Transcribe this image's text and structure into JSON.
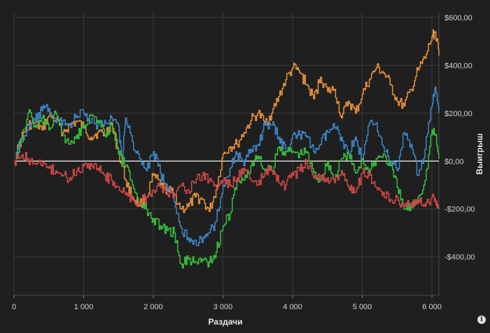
{
  "chart_data": {
    "type": "line",
    "xlabel": "Раздачи",
    "ylabel": "Выигрыш",
    "xlim": [
      0,
      6100
    ],
    "ylim": [
      -560,
      620
    ],
    "x_ticks": [
      {
        "value": 0,
        "label": "0"
      },
      {
        "value": 1000,
        "label": "1 000"
      },
      {
        "value": 2000,
        "label": "2 000"
      },
      {
        "value": 3000,
        "label": "3 000"
      },
      {
        "value": 4000,
        "label": "4 000"
      },
      {
        "value": 5000,
        "label": "5 000"
      },
      {
        "value": 6000,
        "label": "6 000"
      }
    ],
    "y_ticks": [
      {
        "value": 600,
        "label": "$600,00"
      },
      {
        "value": 400,
        "label": "$400,00"
      },
      {
        "value": 200,
        "label": "$200,00"
      },
      {
        "value": 0,
        "label": "$0,00"
      },
      {
        "value": -200,
        "label": "-$200,00"
      },
      {
        "value": -400,
        "label": "-$400,00"
      }
    ],
    "grid": true,
    "series": [
      {
        "color": "#e8913a",
        "x": [
          0,
          100,
          200,
          300,
          400,
          500,
          600,
          700,
          800,
          900,
          1000,
          1100,
          1200,
          1300,
          1400,
          1500,
          1600,
          1700,
          1800,
          1900,
          2000,
          2100,
          2200,
          2300,
          2400,
          2500,
          2600,
          2700,
          2800,
          2900,
          3000,
          3100,
          3200,
          3300,
          3400,
          3500,
          3600,
          3700,
          3800,
          3900,
          4000,
          4100,
          4200,
          4300,
          4400,
          4500,
          4600,
          4700,
          4800,
          4900,
          5000,
          5100,
          5200,
          5300,
          5400,
          5500,
          5600,
          5700,
          5800,
          5900,
          6000,
          6050,
          6100
        ],
        "y": [
          0,
          95,
          150,
          160,
          130,
          190,
          170,
          120,
          150,
          165,
          140,
          100,
          120,
          110,
          160,
          30,
          -80,
          -150,
          -180,
          -150,
          -60,
          -100,
          -120,
          -140,
          -200,
          -190,
          -150,
          -160,
          -210,
          -120,
          30,
          60,
          70,
          120,
          170,
          200,
          160,
          200,
          270,
          340,
          390,
          370,
          320,
          260,
          350,
          290,
          300,
          180,
          250,
          200,
          280,
          340,
          390,
          370,
          320,
          250,
          230,
          300,
          380,
          430,
          520,
          540,
          440
        ]
      },
      {
        "color": "#3f86c9",
        "x": [
          0,
          100,
          200,
          300,
          400,
          500,
          600,
          700,
          800,
          900,
          1000,
          1100,
          1200,
          1300,
          1400,
          1500,
          1550,
          1600,
          1700,
          1800,
          1900,
          2000,
          2100,
          2200,
          2300,
          2400,
          2500,
          2600,
          2700,
          2800,
          2900,
          3000,
          3100,
          3200,
          3300,
          3400,
          3500,
          3600,
          3700,
          3800,
          3900,
          4000,
          4100,
          4200,
          4300,
          4400,
          4500,
          4600,
          4700,
          4800,
          4900,
          5000,
          5100,
          5200,
          5300,
          5400,
          5500,
          5600,
          5700,
          5800,
          5900,
          6000,
          6050,
          6100
        ],
        "y": [
          0,
          90,
          130,
          170,
          210,
          220,
          160,
          170,
          150,
          190,
          200,
          160,
          150,
          170,
          180,
          150,
          -10,
          180,
          80,
          10,
          -40,
          40,
          -50,
          -120,
          -170,
          -280,
          -320,
          -330,
          -340,
          -300,
          -250,
          -100,
          -30,
          30,
          -20,
          50,
          70,
          150,
          150,
          100,
          40,
          110,
          110,
          100,
          40,
          70,
          120,
          140,
          100,
          30,
          100,
          0,
          160,
          160,
          60,
          0,
          -40,
          120,
          70,
          -60,
          50,
          230,
          310,
          200
        ]
      },
      {
        "color": "#36c13e",
        "x": [
          0,
          100,
          200,
          300,
          400,
          500,
          600,
          700,
          800,
          900,
          1000,
          1100,
          1200,
          1300,
          1400,
          1500,
          1600,
          1700,
          1800,
          1900,
          2000,
          2100,
          2200,
          2300,
          2400,
          2500,
          2600,
          2700,
          2800,
          2900,
          3000,
          3100,
          3200,
          3300,
          3400,
          3500,
          3600,
          3700,
          3800,
          3900,
          4000,
          4100,
          4200,
          4300,
          4400,
          4500,
          4600,
          4700,
          4800,
          4900,
          5000,
          5100,
          5200,
          5300,
          5400,
          5500,
          5600,
          5700,
          5800,
          5900,
          6000,
          6050,
          6100
        ],
        "y": [
          0,
          80,
          200,
          150,
          180,
          130,
          200,
          110,
          70,
          110,
          150,
          190,
          170,
          110,
          150,
          30,
          -20,
          -100,
          -170,
          -200,
          -240,
          -270,
          -290,
          -300,
          -430,
          -410,
          -420,
          -410,
          -420,
          -380,
          -270,
          -220,
          -80,
          -80,
          -20,
          20,
          -40,
          -40,
          60,
          40,
          40,
          30,
          40,
          -50,
          -80,
          0,
          -80,
          10,
          30,
          -50,
          10,
          -50,
          10,
          30,
          -20,
          -110,
          -200,
          -190,
          -150,
          -80,
          130,
          110,
          10
        ]
      },
      {
        "color": "#cf4848",
        "x": [
          0,
          100,
          200,
          300,
          400,
          500,
          600,
          700,
          800,
          900,
          1000,
          1100,
          1200,
          1300,
          1400,
          1500,
          1600,
          1700,
          1800,
          1900,
          2000,
          2100,
          2200,
          2300,
          2400,
          2500,
          2600,
          2700,
          2800,
          2900,
          3000,
          3100,
          3200,
          3300,
          3400,
          3500,
          3600,
          3700,
          3800,
          3900,
          4000,
          4100,
          4200,
          4300,
          4400,
          4500,
          4600,
          4700,
          4800,
          4900,
          5000,
          5100,
          5200,
          5300,
          5400,
          5500,
          5600,
          5700,
          5800,
          5900,
          6000,
          6050,
          6100
        ],
        "y": [
          0,
          20,
          10,
          -10,
          -20,
          -30,
          -40,
          -60,
          -70,
          -40,
          -20,
          -10,
          -30,
          -60,
          -80,
          -110,
          -140,
          -160,
          -180,
          -150,
          -120,
          -110,
          -140,
          -140,
          -100,
          -120,
          -90,
          -60,
          -80,
          -110,
          -80,
          -100,
          -70,
          -30,
          -80,
          -100,
          -50,
          -40,
          -90,
          -100,
          -60,
          -40,
          -10,
          -70,
          -60,
          -70,
          -90,
          -40,
          -110,
          -130,
          -50,
          -60,
          -110,
          -130,
          -160,
          -150,
          -190,
          -180,
          -160,
          -190,
          -150,
          -170,
          -200
        ]
      }
    ]
  },
  "info_icon": {
    "glyph": "i",
    "name": "info-icon"
  }
}
